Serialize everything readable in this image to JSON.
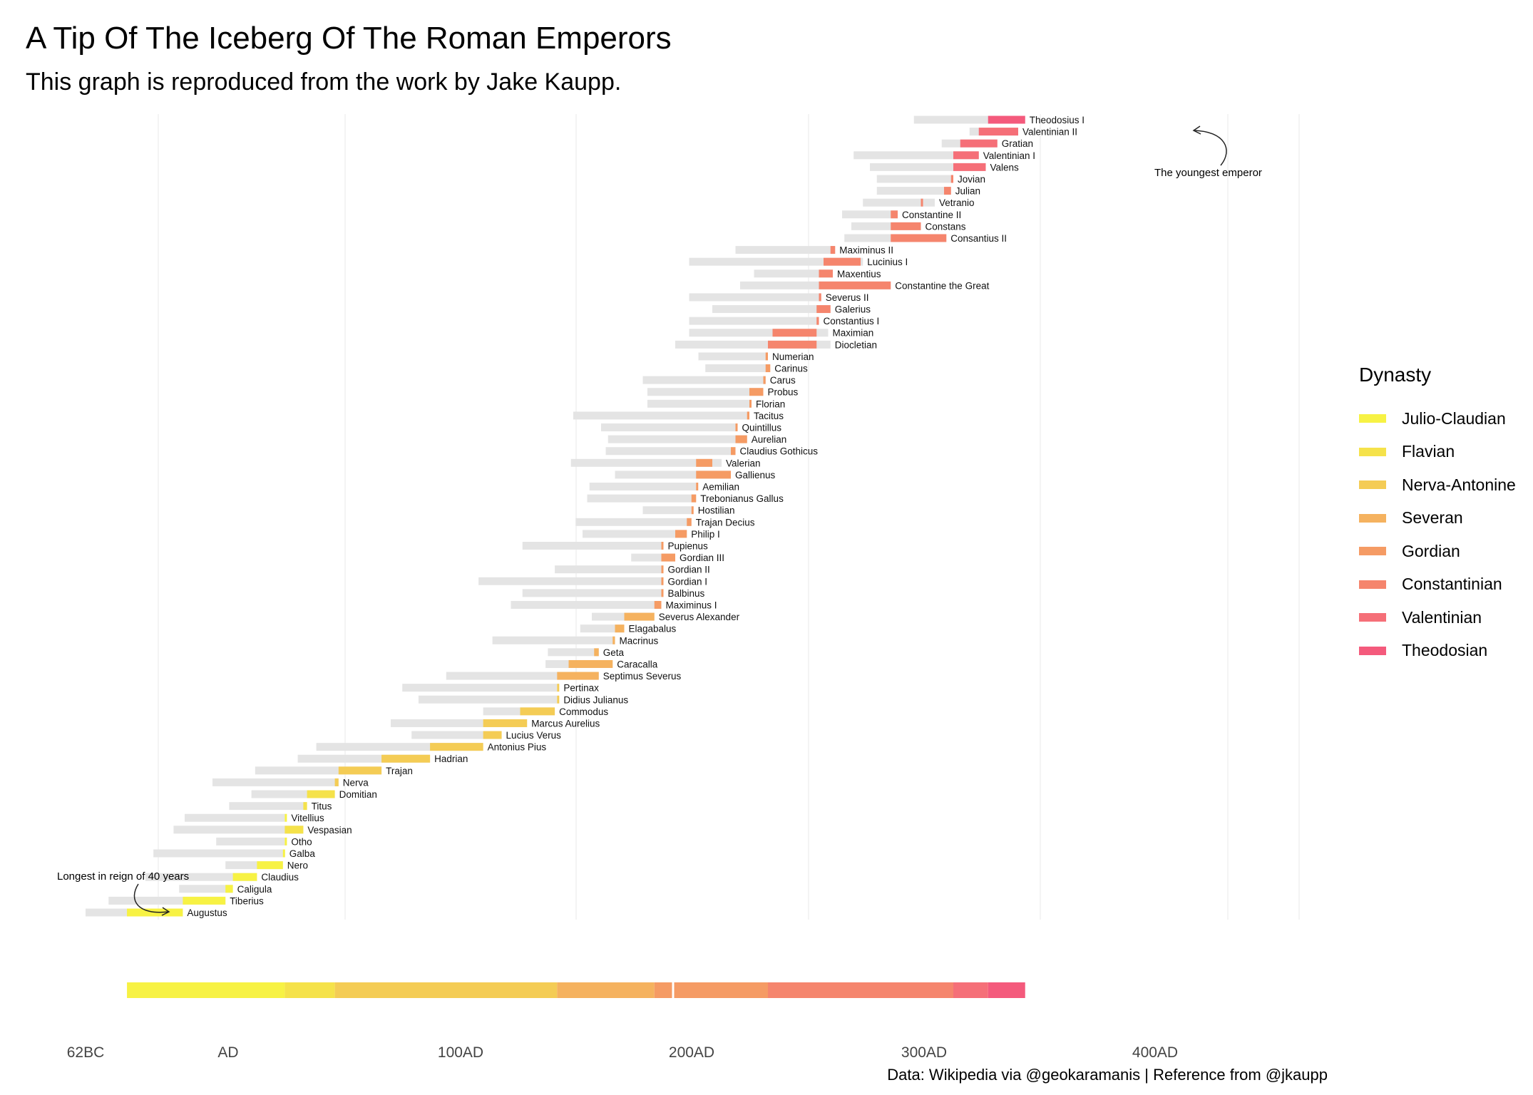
{
  "title": "A Tip Of The Iceberg Of The Roman Emperors",
  "subtitle": "This graph is reproduced from the work by Jake Kaupp.",
  "caption": "Data: Wikipedia via @geokaramanis | Reference from @jkaupp",
  "legend": {
    "title": "Dynasty",
    "items": [
      {
        "label": "Julio-Claudian",
        "color": "#F7F244"
      },
      {
        "label": "Flavian",
        "color": "#F5E24A"
      },
      {
        "label": "Nerva-Antonine",
        "color": "#F4CC55"
      },
      {
        "label": "Severan",
        "color": "#F5B25F"
      },
      {
        "label": "Gordian",
        "color": "#F59B64"
      },
      {
        "label": "Constantinian",
        "color": "#F5856D"
      },
      {
        "label": "Valentinian",
        "color": "#F56F78"
      },
      {
        "label": "Theodosian",
        "color": "#F45A7C"
      }
    ]
  },
  "annotations": {
    "longest": "Longest in reign of 40 years",
    "youngest": "The youngest emperor"
  },
  "chart_data": {
    "type": "bar",
    "xlabel": "",
    "ylabel": "",
    "x_ticks": [
      "62BC",
      "AD",
      "100AD",
      "200AD",
      "300AD",
      "400AD"
    ],
    "x_tick_values": [
      -62,
      0,
      100,
      200,
      300,
      400
    ],
    "xlim": [
      -62,
      460
    ],
    "grid": "vertical major gridlines only",
    "legend_position": "right",
    "series_description": "Grey bar: life span (birth to death); coloured bar: reign (start to end), coloured by dynasty",
    "emperors": [
      {
        "name": "Augustus",
        "dynasty": "Julio-Claudian",
        "birth": -62,
        "death": 14,
        "reign_start": -26,
        "reign_end": 14
      },
      {
        "name": "Tiberius",
        "dynasty": "Julio-Claudian",
        "birth": -42,
        "death": 37,
        "reign_start": 14,
        "reign_end": 37
      },
      {
        "name": "Caligula",
        "dynasty": "Julio-Claudian",
        "birth": 12,
        "death": 41,
        "reign_start": 37,
        "reign_end": 41
      },
      {
        "name": "Claudius",
        "dynasty": "Julio-Claudian",
        "birth": -10,
        "death": 54,
        "reign_start": 41,
        "reign_end": 54
      },
      {
        "name": "Nero",
        "dynasty": "Julio-Claudian",
        "birth": 37,
        "death": 68,
        "reign_start": 54,
        "reign_end": 68
      },
      {
        "name": "Galba",
        "dynasty": "Julio-Claudian",
        "birth": -3,
        "death": 69,
        "reign_start": 68,
        "reign_end": 69
      },
      {
        "name": "Otho",
        "dynasty": "Julio-Claudian",
        "birth": 32,
        "death": 69,
        "reign_start": 69,
        "reign_end": 69
      },
      {
        "name": "Vespasian",
        "dynasty": "Flavian",
        "birth": 9,
        "death": 79,
        "reign_start": 69,
        "reign_end": 79
      },
      {
        "name": "Vitellius",
        "dynasty": "Julio-Claudian",
        "birth": 15,
        "death": 69,
        "reign_start": 69,
        "reign_end": 69
      },
      {
        "name": "Titus",
        "dynasty": "Flavian",
        "birth": 39,
        "death": 81,
        "reign_start": 79,
        "reign_end": 81
      },
      {
        "name": "Domitian",
        "dynasty": "Flavian",
        "birth": 51,
        "death": 96,
        "reign_start": 81,
        "reign_end": 96
      },
      {
        "name": "Nerva",
        "dynasty": "Nerva-Antonine",
        "birth": 30,
        "death": 98,
        "reign_start": 96,
        "reign_end": 98
      },
      {
        "name": "Trajan",
        "dynasty": "Nerva-Antonine",
        "birth": 53,
        "death": 117,
        "reign_start": 98,
        "reign_end": 117
      },
      {
        "name": "Hadrian",
        "dynasty": "Nerva-Antonine",
        "birth": 76,
        "death": 138,
        "reign_start": 117,
        "reign_end": 138
      },
      {
        "name": "Antonius Pius",
        "dynasty": "Nerva-Antonine",
        "birth": 86,
        "death": 161,
        "reign_start": 138,
        "reign_end": 161
      },
      {
        "name": "Lucius Verus",
        "dynasty": "Nerva-Antonine",
        "birth": 130,
        "death": 169,
        "reign_start": 161,
        "reign_end": 169
      },
      {
        "name": "Marcus Aurelius",
        "dynasty": "Nerva-Antonine",
        "birth": 121,
        "death": 180,
        "reign_start": 161,
        "reign_end": 180
      },
      {
        "name": "Commodus",
        "dynasty": "Nerva-Antonine",
        "birth": 161,
        "death": 192,
        "reign_start": 177,
        "reign_end": 192
      },
      {
        "name": "Didius Julianus",
        "dynasty": "Nerva-Antonine",
        "birth": 133,
        "death": 193,
        "reign_start": 193,
        "reign_end": 193
      },
      {
        "name": "Pertinax",
        "dynasty": "Nerva-Antonine",
        "birth": 126,
        "death": 193,
        "reign_start": 193,
        "reign_end": 193
      },
      {
        "name": "Septimus Severus",
        "dynasty": "Severan",
        "birth": 145,
        "death": 211,
        "reign_start": 193,
        "reign_end": 211
      },
      {
        "name": "Caracalla",
        "dynasty": "Severan",
        "birth": 188,
        "death": 217,
        "reign_start": 198,
        "reign_end": 217
      },
      {
        "name": "Geta",
        "dynasty": "Severan",
        "birth": 189,
        "death": 211,
        "reign_start": 209,
        "reign_end": 211
      },
      {
        "name": "Macrinus",
        "dynasty": "Severan",
        "birth": 165,
        "death": 218,
        "reign_start": 217,
        "reign_end": 218
      },
      {
        "name": "Elagabalus",
        "dynasty": "Severan",
        "birth": 203,
        "death": 222,
        "reign_start": 218,
        "reign_end": 222
      },
      {
        "name": "Severus Alexander",
        "dynasty": "Severan",
        "birth": 208,
        "death": 235,
        "reign_start": 222,
        "reign_end": 235
      },
      {
        "name": "Maximinus I",
        "dynasty": "Gordian",
        "birth": 173,
        "death": 238,
        "reign_start": 235,
        "reign_end": 238
      },
      {
        "name": "Balbinus",
        "dynasty": "Gordian",
        "birth": 178,
        "death": 238,
        "reign_start": 238,
        "reign_end": 238
      },
      {
        "name": "Gordian I",
        "dynasty": "Gordian",
        "birth": 159,
        "death": 238,
        "reign_start": 238,
        "reign_end": 238
      },
      {
        "name": "Gordian II",
        "dynasty": "Gordian",
        "birth": 192,
        "death": 238,
        "reign_start": 238,
        "reign_end": 238
      },
      {
        "name": "Gordian III",
        "dynasty": "Gordian",
        "birth": 225,
        "death": 244,
        "reign_start": 238,
        "reign_end": 244
      },
      {
        "name": "Pupienus",
        "dynasty": "Gordian",
        "birth": 178,
        "death": 238,
        "reign_start": 238,
        "reign_end": 238
      },
      {
        "name": "Philip I",
        "dynasty": "Gordian",
        "birth": 204,
        "death": 249,
        "reign_start": 244,
        "reign_end": 249
      },
      {
        "name": "Trajan Decius",
        "dynasty": "Gordian",
        "birth": 201,
        "death": 251,
        "reign_start": 249,
        "reign_end": 251
      },
      {
        "name": "Hostilian",
        "dynasty": "Gordian",
        "birth": 230,
        "death": 251,
        "reign_start": 251,
        "reign_end": 251
      },
      {
        "name": "Trebonianus Gallus",
        "dynasty": "Gordian",
        "birth": 206,
        "death": 253,
        "reign_start": 251,
        "reign_end": 253
      },
      {
        "name": "Aemilian",
        "dynasty": "Gordian",
        "birth": 207,
        "death": 253,
        "reign_start": 253,
        "reign_end": 253
      },
      {
        "name": "Gallienus",
        "dynasty": "Gordian",
        "birth": 218,
        "death": 268,
        "reign_start": 253,
        "reign_end": 268
      },
      {
        "name": "Valerian",
        "dynasty": "Gordian",
        "birth": 199,
        "death": 264,
        "reign_start": 253,
        "reign_end": 260
      },
      {
        "name": "Claudius Gothicus",
        "dynasty": "Gordian",
        "birth": 214,
        "death": 270,
        "reign_start": 268,
        "reign_end": 270
      },
      {
        "name": "Aurelian",
        "dynasty": "Gordian",
        "birth": 215,
        "death": 275,
        "reign_start": 270,
        "reign_end": 275
      },
      {
        "name": "Quintillus",
        "dynasty": "Gordian",
        "birth": 212,
        "death": 270,
        "reign_start": 270,
        "reign_end": 270
      },
      {
        "name": "Tacitus",
        "dynasty": "Gordian",
        "birth": 200,
        "death": 276,
        "reign_start": 275,
        "reign_end": 276
      },
      {
        "name": "Florian",
        "dynasty": "Gordian",
        "birth": 232,
        "death": 276,
        "reign_start": 276,
        "reign_end": 276
      },
      {
        "name": "Probus",
        "dynasty": "Gordian",
        "birth": 232,
        "death": 282,
        "reign_start": 276,
        "reign_end": 282
      },
      {
        "name": "Carus",
        "dynasty": "Gordian",
        "birth": 230,
        "death": 283,
        "reign_start": 282,
        "reign_end": 283
      },
      {
        "name": "Carinus",
        "dynasty": "Gordian",
        "birth": 257,
        "death": 285,
        "reign_start": 283,
        "reign_end": 285
      },
      {
        "name": "Numerian",
        "dynasty": "Gordian",
        "birth": 254,
        "death": 284,
        "reign_start": 283,
        "reign_end": 284
      },
      {
        "name": "Diocletian",
        "dynasty": "Constantinian",
        "birth": 244,
        "death": 311,
        "reign_start": 284,
        "reign_end": 305
      },
      {
        "name": "Maximian",
        "dynasty": "Constantinian",
        "birth": 250,
        "death": 310,
        "reign_start": 286,
        "reign_end": 305
      },
      {
        "name": "Constantius I",
        "dynasty": "Constantinian",
        "birth": 250,
        "death": 306,
        "reign_start": 305,
        "reign_end": 306
      },
      {
        "name": "Galerius",
        "dynasty": "Constantinian",
        "birth": 260,
        "death": 311,
        "reign_start": 305,
        "reign_end": 311
      },
      {
        "name": "Severus II",
        "dynasty": "Constantinian",
        "birth": 250,
        "death": 307,
        "reign_start": 306,
        "reign_end": 307
      },
      {
        "name": "Constantine the Great",
        "dynasty": "Constantinian",
        "birth": 272,
        "death": 337,
        "reign_start": 306,
        "reign_end": 337
      },
      {
        "name": "Maxentius",
        "dynasty": "Constantinian",
        "birth": 278,
        "death": 312,
        "reign_start": 306,
        "reign_end": 312
      },
      {
        "name": "Lucinius I",
        "dynasty": "Constantinian",
        "birth": 250,
        "death": 325,
        "reign_start": 308,
        "reign_end": 324
      },
      {
        "name": "Maximinus II",
        "dynasty": "Constantinian",
        "birth": 270,
        "death": 313,
        "reign_start": 311,
        "reign_end": 313
      },
      {
        "name": "Consantius II",
        "dynasty": "Constantinian",
        "birth": 317,
        "death": 361,
        "reign_start": 337,
        "reign_end": 361
      },
      {
        "name": "Constans",
        "dynasty": "Constantinian",
        "birth": 320,
        "death": 350,
        "reign_start": 337,
        "reign_end": 350
      },
      {
        "name": "Constantine II",
        "dynasty": "Constantinian",
        "birth": 316,
        "death": 340,
        "reign_start": 337,
        "reign_end": 340
      },
      {
        "name": "Vetranio",
        "dynasty": "Constantinian",
        "birth": 325,
        "death": 356,
        "reign_start": 350,
        "reign_end": 350
      },
      {
        "name": "Julian",
        "dynasty": "Constantinian",
        "birth": 331,
        "death": 363,
        "reign_start": 360,
        "reign_end": 363
      },
      {
        "name": "Jovian",
        "dynasty": "Constantinian",
        "birth": 331,
        "death": 364,
        "reign_start": 363,
        "reign_end": 364
      },
      {
        "name": "Valens",
        "dynasty": "Valentinian",
        "birth": 328,
        "death": 378,
        "reign_start": 364,
        "reign_end": 378
      },
      {
        "name": "Valentinian I",
        "dynasty": "Valentinian",
        "birth": 321,
        "death": 375,
        "reign_start": 364,
        "reign_end": 375
      },
      {
        "name": "Gratian",
        "dynasty": "Valentinian",
        "birth": 359,
        "death": 383,
        "reign_start": 367,
        "reign_end": 383
      },
      {
        "name": "Valentinian II",
        "dynasty": "Valentinian",
        "birth": 371,
        "death": 392,
        "reign_start": 375,
        "reign_end": 392
      },
      {
        "name": "Theodosius I",
        "dynasty": "Theodosian",
        "birth": 347,
        "death": 395,
        "reign_start": 379,
        "reign_end": 395
      }
    ]
  }
}
